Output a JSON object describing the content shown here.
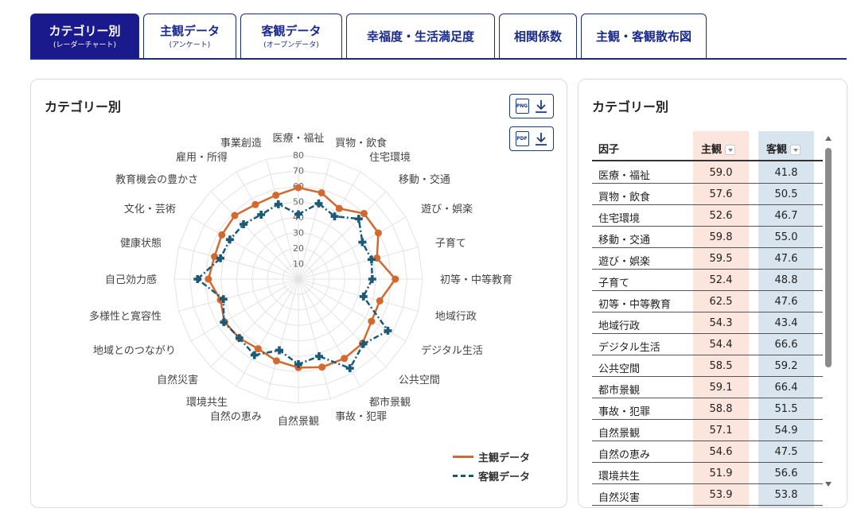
{
  "tabs": [
    {
      "main": "カテゴリー別",
      "sub": "(レーダーチャート)",
      "active": true
    },
    {
      "main": "主観データ",
      "sub": "(アンケート)",
      "active": false
    },
    {
      "main": "客観データ",
      "sub": "(オープンデータ)",
      "active": false
    },
    {
      "main": "幸福度・生活満足度",
      "sub": "",
      "active": false
    },
    {
      "main": "相関係数",
      "sub": "",
      "active": false
    },
    {
      "main": "主観・客観散布図",
      "sub": "",
      "active": false
    }
  ],
  "left_panel": {
    "title": "カテゴリー別",
    "png_label": "PNG",
    "pdf_label": "PDF"
  },
  "right_panel": {
    "title": "カテゴリー別",
    "headers": {
      "factor": "因子",
      "subjective": "主観",
      "objective": "客観"
    },
    "rows": [
      {
        "name": "医療・福祉",
        "s": "59.0",
        "o": "41.8"
      },
      {
        "name": "買物・飲食",
        "s": "57.6",
        "o": "50.5"
      },
      {
        "name": "住宅環境",
        "s": "52.6",
        "o": "46.7"
      },
      {
        "name": "移動・交通",
        "s": "59.8",
        "o": "55.0"
      },
      {
        "name": "遊び・娯楽",
        "s": "59.5",
        "o": "47.6"
      },
      {
        "name": "子育て",
        "s": "52.4",
        "o": "48.8"
      },
      {
        "name": "初等・中等教育",
        "s": "62.5",
        "o": "47.6"
      },
      {
        "name": "地域行政",
        "s": "54.3",
        "o": "43.4"
      },
      {
        "name": "デジタル生活",
        "s": "54.4",
        "o": "66.6"
      },
      {
        "name": "公共空間",
        "s": "58.5",
        "o": "59.2"
      },
      {
        "name": "都市景観",
        "s": "59.1",
        "o": "66.4"
      },
      {
        "name": "事故・犯罪",
        "s": "58.8",
        "o": "51.5"
      },
      {
        "name": "自然景観",
        "s": "57.1",
        "o": "54.9"
      },
      {
        "name": "自然の恵み",
        "s": "54.6",
        "o": "47.5"
      },
      {
        "name": "環境共生",
        "s": "51.9",
        "o": "56.6"
      },
      {
        "name": "自然災害",
        "s": "53.9",
        "o": "53.8"
      }
    ]
  },
  "colors": {
    "subjective": "#d2692e",
    "objective": "#1a5a78",
    "tab_active": "#1a1a8c"
  },
  "chart_data": {
    "type": "radar",
    "title": "",
    "categories": [
      "医療・福祉",
      "買物・飲食",
      "住宅環境",
      "移動・交通",
      "遊び・娯楽",
      "子育て",
      "初等・中等教育",
      "地域行政",
      "デジタル生活",
      "公共空間",
      "都市景観",
      "事故・犯罪",
      "自然景観",
      "自然の恵み",
      "環境共生",
      "自然災害",
      "地域とのつながり",
      "多様性と寛容性",
      "自己効力感",
      "健康状態",
      "文化・芸術",
      "教育機会の豊かさ",
      "雇用・所得",
      "事業創造"
    ],
    "tick_labels": [
      "10",
      "20",
      "30",
      "40",
      "50",
      "60",
      "70",
      "80"
    ],
    "rmax": 80,
    "series": [
      {
        "name": "主観データ",
        "values": [
          59.0,
          57.6,
          52.6,
          59.8,
          59.5,
          52.4,
          62.5,
          54.3,
          54.4,
          58.5,
          59.1,
          58.8,
          57.1,
          54.6,
          51.9,
          53.9,
          55.0,
          52.0,
          58.0,
          56.0,
          57.0,
          58.0,
          55.5,
          56.0
        ]
      },
      {
        "name": "客観データ",
        "values": [
          41.8,
          50.5,
          46.7,
          55.0,
          47.6,
          48.8,
          47.6,
          43.4,
          66.6,
          59.2,
          66.4,
          51.5,
          54.9,
          47.5,
          56.6,
          53.8,
          55.5,
          50.0,
          65.0,
          52.0,
          51.0,
          50.0,
          48.0,
          50.0
        ]
      }
    ],
    "legend": "bottom-right"
  }
}
